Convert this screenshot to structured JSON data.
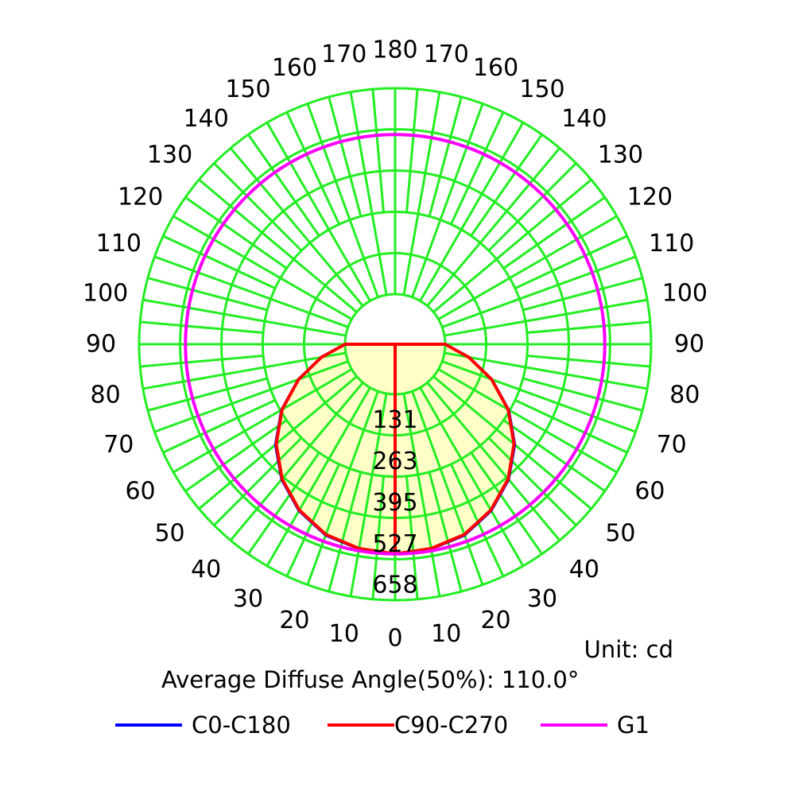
{
  "chart_data": {
    "type": "polar",
    "unit_label": "Unit: cd",
    "beam_label": "Average Diffuse Angle(50%): 110.0°",
    "radial_max": 658,
    "radial_ticks": [
      131,
      263,
      395,
      527,
      658
    ],
    "angle_ticks_left": [
      0,
      10,
      20,
      30,
      40,
      50,
      60,
      70,
      80,
      90,
      100,
      110,
      120,
      130,
      140,
      150,
      160,
      170,
      180
    ],
    "angle_ticks_right": [
      10,
      20,
      30,
      40,
      50,
      60,
      70,
      80,
      90,
      100,
      110,
      120,
      130,
      140,
      150,
      160,
      170
    ],
    "grid": true,
    "colors": {
      "grid": "#22ee22",
      "fill": "#ffffc8"
    },
    "series": [
      {
        "name": "C0-C180",
        "color": "#0000ff",
        "angles": [
          0,
          10,
          20,
          30,
          40,
          50,
          60,
          70,
          80,
          90
        ],
        "values": [
          510,
          505,
          490,
          455,
          405,
          340,
          260,
          170,
          80,
          0
        ]
      },
      {
        "name": "C90-C270",
        "color": "#ff0000",
        "angles": [
          0,
          10,
          20,
          30,
          40,
          50,
          60,
          70,
          80,
          90
        ],
        "values": [
          510,
          503,
          487,
          452,
          402,
          336,
          257,
          168,
          79,
          0
        ]
      },
      {
        "name": "G1",
        "color": "#ff00ff",
        "kind": "circle",
        "value": 510
      }
    ],
    "legend_position": "bottom"
  }
}
